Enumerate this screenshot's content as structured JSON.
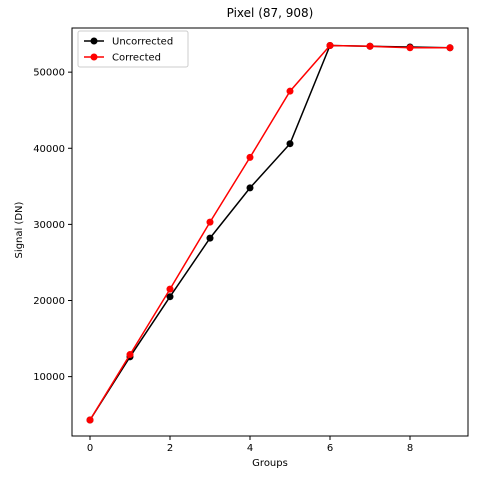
{
  "chart_data": {
    "type": "line",
    "title": "Pixel (87, 908)",
    "xlabel": "Groups",
    "ylabel": "Signal (DN)",
    "xlim": [
      -0.45,
      9.45
    ],
    "ylim": [
      2200,
      55800
    ],
    "xticks": [
      0,
      2,
      4,
      6,
      8
    ],
    "yticks": [
      10000,
      20000,
      30000,
      40000,
      50000
    ],
    "grid": false,
    "legend": "top-left",
    "x": [
      0,
      1,
      2,
      3,
      4,
      5,
      6,
      7,
      8,
      9
    ],
    "series": [
      {
        "name": "Uncorrected",
        "color": "#000000",
        "values": [
          4300,
          12600,
          20500,
          28200,
          34800,
          40600,
          53500,
          53400,
          53300,
          53200
        ]
      },
      {
        "name": "Corrected",
        "color": "#ff0000",
        "values": [
          4300,
          12900,
          21500,
          30300,
          38800,
          47500,
          53500,
          53400,
          53200,
          53200
        ]
      }
    ]
  }
}
